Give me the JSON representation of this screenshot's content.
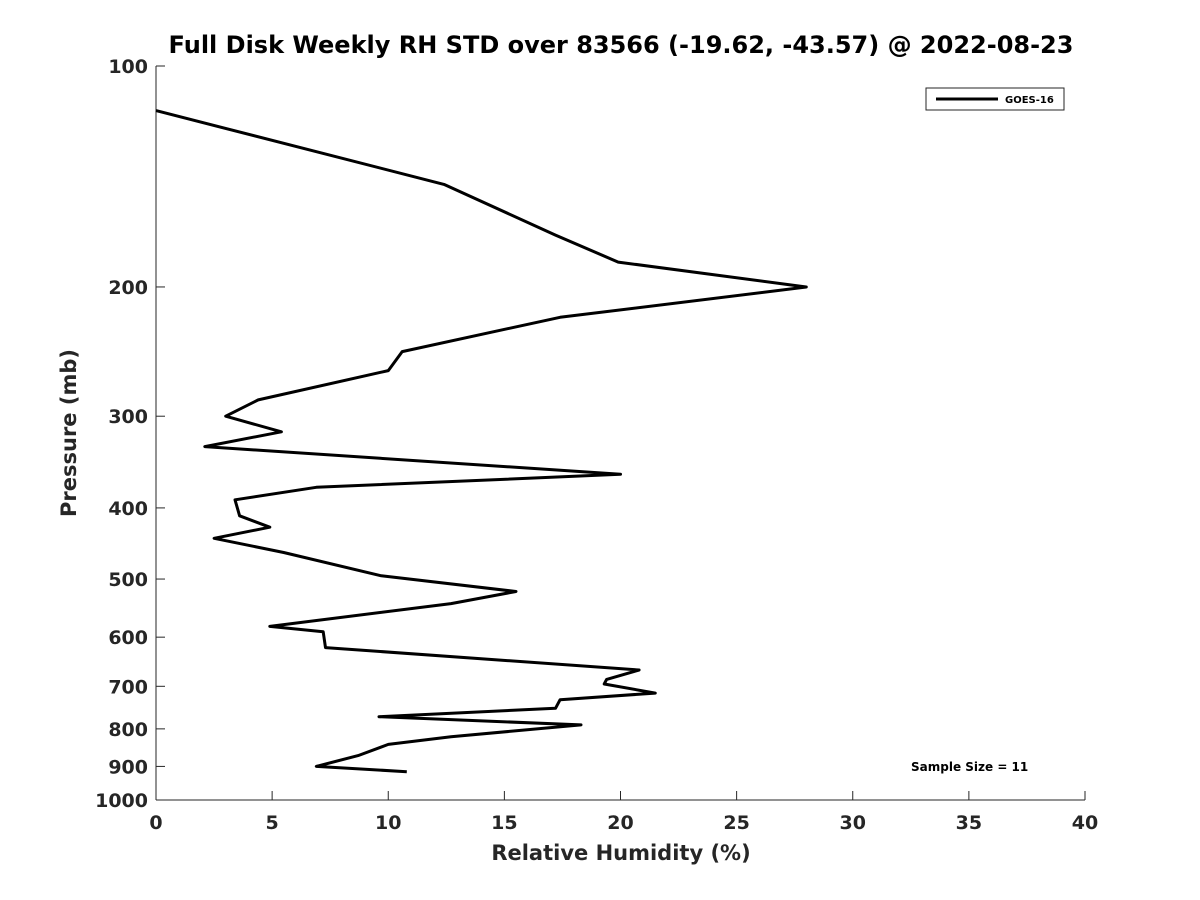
{
  "chart_data": {
    "type": "line",
    "title": "Full Disk Weekly RH STD over 83566 (-19.62, -43.57) @ 2022-08-23",
    "xlabel": "Relative Humidity (%)",
    "ylabel": "Pressure (mb)",
    "xlim": [
      0,
      40
    ],
    "ylim": [
      100,
      1000
    ],
    "y_scale": "log",
    "y_reversed": true,
    "x_ticks": [
      0,
      5,
      10,
      15,
      20,
      25,
      30,
      35,
      40
    ],
    "y_ticks": [
      100,
      200,
      300,
      400,
      500,
      600,
      700,
      800,
      900,
      1000
    ],
    "legend_position": "top-right",
    "annotation": "Sample Size = 11",
    "series": [
      {
        "name": "GOES-16",
        "color": "#000000",
        "x": [
          0.0,
          12.4,
          17.2,
          19.9,
          28.0,
          17.4,
          10.6,
          10.0,
          4.4,
          3.0,
          5.4,
          2.1,
          20.0,
          6.9,
          3.4,
          3.6,
          4.9,
          2.5,
          5.5,
          9.7,
          15.5,
          12.7,
          4.9,
          7.2,
          7.3,
          20.8,
          19.4,
          19.3,
          21.5,
          17.4,
          17.2,
          9.6,
          18.3,
          12.7,
          10.0,
          8.7,
          6.9,
          10.8
        ],
        "y": [
          115,
          145,
          170,
          185,
          200,
          220,
          245,
          260,
          285,
          300,
          315,
          330,
          360,
          375,
          390,
          410,
          425,
          440,
          460,
          495,
          520,
          540,
          580,
          590,
          620,
          665,
          685,
          695,
          715,
          730,
          750,
          770,
          790,
          820,
          840,
          870,
          900,
          915
        ]
      }
    ]
  }
}
